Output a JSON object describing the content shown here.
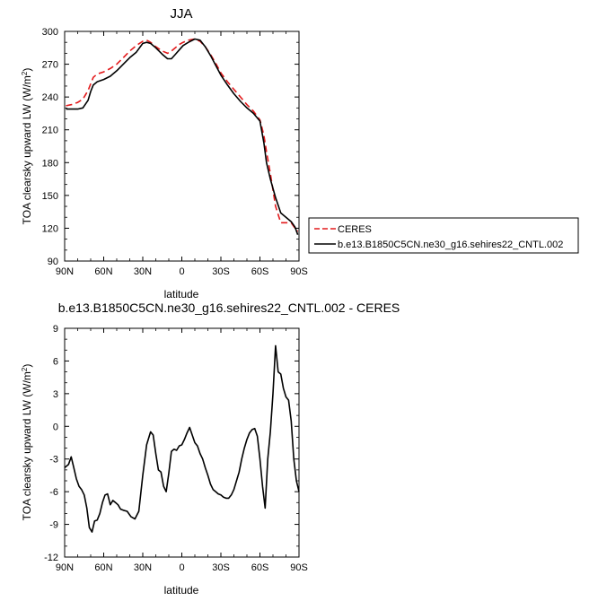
{
  "chart_data": [
    {
      "type": "line",
      "title": "JJA",
      "xlabel": "latitude",
      "ylabel": "TOA clearsky upward LW (W/m",
      "ylabel_sup": "2",
      "ylabel_end": ")",
      "xlim": [
        90,
        -90
      ],
      "ylim": [
        90,
        300
      ],
      "xticks": [
        90,
        60,
        30,
        0,
        -30,
        -60,
        -90
      ],
      "xtick_labels": [
        "90N",
        "60N",
        "30N",
        "0",
        "30S",
        "60S",
        "90S"
      ],
      "yticks": [
        90,
        120,
        150,
        180,
        210,
        240,
        270,
        300
      ],
      "ytick_labels": [
        "90",
        "120",
        "150",
        "180",
        "210",
        "240",
        "270",
        "300"
      ],
      "legend_position": "right",
      "series": [
        {
          "name": "CERES",
          "color": "#e31a1c",
          "dash": "dashed",
          "x": [
            89,
            85,
            80,
            76,
            72,
            70,
            68,
            65,
            60,
            55,
            50,
            45,
            40,
            35,
            30,
            27,
            24,
            20,
            15,
            11,
            8,
            5,
            2,
            -1,
            -5,
            -10,
            -14,
            -18,
            -22,
            -26,
            -30,
            -35,
            -40,
            -45,
            -50,
            -55,
            -60,
            -63,
            -65,
            -68,
            -72,
            -76,
            -80,
            -84,
            -87,
            -89
          ],
          "y": [
            232,
            233,
            235,
            238,
            246,
            252,
            258,
            261,
            263,
            266,
            270,
            276,
            282,
            287,
            291,
            292,
            290,
            286,
            282,
            280,
            282,
            285,
            288,
            290,
            292,
            293,
            291,
            286,
            279,
            271,
            262,
            254,
            247,
            240,
            233,
            227,
            219,
            205,
            190,
            170,
            140,
            125,
            125,
            125,
            120,
            117
          ]
        },
        {
          "name": "b.e13.B1850C5CN.ne30_g16.sehires22_CNTL.002",
          "color": "#000000",
          "dash": "solid",
          "x": [
            89,
            85,
            80,
            76,
            72,
            70,
            68,
            65,
            60,
            55,
            50,
            45,
            40,
            35,
            30,
            27,
            24,
            20,
            15,
            11,
            8,
            5,
            2,
            -1,
            -5,
            -10,
            -14,
            -18,
            -22,
            -26,
            -30,
            -35,
            -40,
            -45,
            -50,
            -55,
            -60,
            -63,
            -65,
            -68,
            -72,
            -76,
            -80,
            -84,
            -87,
            -89
          ],
          "y": [
            229,
            229,
            229,
            230,
            237,
            245,
            251,
            254,
            256,
            259,
            264,
            270,
            276,
            281,
            289,
            290,
            289,
            285,
            279,
            275,
            275,
            279,
            283,
            287,
            290,
            293,
            292,
            286,
            278,
            269,
            260,
            251,
            243,
            236,
            230,
            225,
            218,
            198,
            180,
            165,
            148,
            134,
            130,
            126,
            121,
            114
          ]
        }
      ]
    },
    {
      "type": "line",
      "title": "b.e13.B1850C5CN.ne30_g16.sehires22_CNTL.002 - CERES",
      "xlabel": "latitude",
      "ylabel": "TOA clearsky upward LW (W/m",
      "ylabel_sup": "2",
      "ylabel_end": ")",
      "xlim": [
        90,
        -90
      ],
      "ylim": [
        -12,
        9
      ],
      "xticks": [
        90,
        60,
        30,
        0,
        -30,
        -60,
        -90
      ],
      "xtick_labels": [
        "90N",
        "60N",
        "30N",
        "0",
        "30S",
        "60S",
        "90S"
      ],
      "yticks": [
        -12,
        -9,
        -6,
        -3,
        0,
        3,
        6,
        9
      ],
      "ytick_labels": [
        "-12",
        "-9",
        "-6",
        "-3",
        "0",
        "3",
        "6",
        "9"
      ],
      "series": [
        {
          "name": "",
          "color": "#000000",
          "dash": "solid",
          "x": [
            90,
            87,
            85,
            83,
            81,
            79,
            77,
            75,
            73,
            71,
            69,
            67,
            65,
            63,
            61,
            59,
            57,
            55,
            53,
            51,
            49,
            47,
            45,
            42,
            39,
            36,
            33,
            30,
            27,
            24,
            22,
            20,
            18,
            16,
            14,
            12,
            10,
            8,
            6,
            4,
            2,
            0,
            -2,
            -4,
            -6,
            -8,
            -10,
            -12,
            -14,
            -16,
            -18,
            -20,
            -22,
            -24,
            -26,
            -28,
            -30,
            -32,
            -34,
            -36,
            -38,
            -40,
            -42,
            -44,
            -46,
            -48,
            -50,
            -52,
            -54,
            -56,
            -58,
            -60,
            -62,
            -64,
            -66,
            -68,
            -70,
            -72,
            -74,
            -76,
            -78,
            -80,
            -82,
            -84,
            -86,
            -88,
            -90
          ],
          "y": [
            -3.8,
            -3.5,
            -2.8,
            -3.8,
            -4.8,
            -5.5,
            -5.8,
            -6.3,
            -7.5,
            -9.3,
            -9.7,
            -8.7,
            -8.6,
            -8.0,
            -7.0,
            -6.3,
            -6.2,
            -7.2,
            -6.8,
            -7.0,
            -7.2,
            -7.6,
            -7.7,
            -7.8,
            -8.3,
            -8.5,
            -7.8,
            -4.5,
            -1.7,
            -0.5,
            -0.8,
            -2.5,
            -4.0,
            -4.2,
            -5.5,
            -6.0,
            -4.3,
            -2.3,
            -2.1,
            -2.2,
            -1.8,
            -1.7,
            -1.2,
            -0.6,
            -0.1,
            -0.8,
            -1.5,
            -1.8,
            -2.5,
            -3.0,
            -3.8,
            -4.5,
            -5.3,
            -5.8,
            -6.0,
            -6.2,
            -6.3,
            -6.5,
            -6.6,
            -6.6,
            -6.3,
            -5.8,
            -5.0,
            -4.2,
            -3.0,
            -2.0,
            -1.2,
            -0.6,
            -0.3,
            -0.2,
            -0.9,
            -3.0,
            -5.5,
            -7.5,
            -3.0,
            -0.5,
            3.0,
            7.4,
            5.0,
            4.8,
            3.5,
            2.7,
            2.4,
            0.5,
            -3.0,
            -5.0,
            -6.0
          ]
        }
      ]
    }
  ]
}
